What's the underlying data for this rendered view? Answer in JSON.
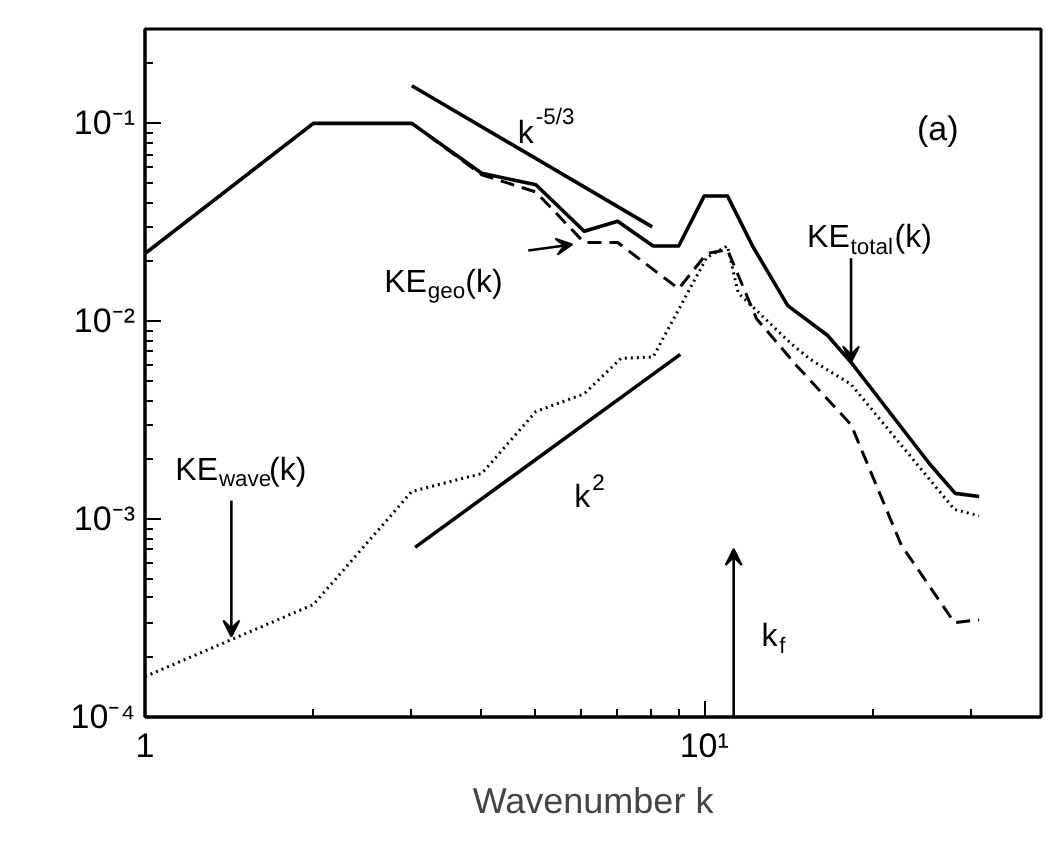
{
  "chart_data": {
    "type": "line",
    "xlabel": "Wavenumber k",
    "log": "xy",
    "xlim": [
      1,
      40
    ],
    "ylim": [
      0.0001,
      0.3
    ],
    "xticks": [
      {
        "value": 1,
        "label": "1"
      },
      {
        "value": 10,
        "label": "10¹"
      }
    ],
    "yticks": [
      {
        "value": 0.0001,
        "label": "10⁻⁴"
      },
      {
        "value": 0.001,
        "label": "10⁻³"
      },
      {
        "value": 0.01,
        "label": "10⁻²"
      },
      {
        "value": 0.1,
        "label": "10⁻¹"
      }
    ],
    "series": [
      {
        "name": "KE$_{total}$(k)",
        "color": "#000000",
        "line_style": "solid",
        "x": [
          1,
          2,
          3,
          4,
          5,
          6.1,
          7,
          8.1,
          9,
          10,
          11,
          12.2,
          14.1,
          16.6,
          18.3,
          25.3,
          28.1,
          31
        ],
        "values": [
          0.022,
          0.1,
          0.1,
          0.056,
          0.049,
          0.0285,
          0.032,
          0.024,
          0.024,
          0.043,
          0.043,
          0.024,
          0.012,
          0.0085,
          0.0062,
          0.0019,
          0.00135,
          0.0013
        ]
      },
      {
        "name": "KE$_{geo}$(k)",
        "color": "#000000",
        "line_style": "dashed",
        "x": [
          1,
          2,
          3,
          4,
          5,
          6.1,
          7,
          9,
          10.1,
          11,
          12.4,
          14.6,
          18.3,
          22.5,
          28,
          31
        ],
        "values": [
          0.022,
          0.1,
          0.1,
          0.055,
          0.045,
          0.025,
          0.025,
          0.0146,
          0.022,
          0.023,
          0.0103,
          0.006,
          0.003,
          0.00074,
          0.0003,
          0.00031
        ]
      },
      {
        "name": "KE$_{wave}$(k)",
        "color": "#000000",
        "line_style": "dotted",
        "x": [
          1,
          2,
          3,
          4,
          5,
          6.1,
          7.1,
          8.1,
          10.1,
          11,
          11.5,
          14.3,
          15.5,
          18.3,
          28,
          31
        ],
        "values": [
          0.00016,
          0.00037,
          0.00138,
          0.0017,
          0.0035,
          0.0043,
          0.0065,
          0.0066,
          0.021,
          0.024,
          0.0139,
          0.0077,
          0.0064,
          0.0048,
          0.00112,
          0.00104
        ]
      },
      {
        "name": "k$^{-5/3}$",
        "color": "#000000",
        "line_style": "solid",
        "x": [
          3,
          8.07
        ],
        "values": [
          0.155,
          0.03
        ]
      },
      {
        "name": "k$^{2}$",
        "color": "#000000",
        "line_style": "solid",
        "x": [
          3.04,
          9.06
        ],
        "values": [
          0.00072,
          0.0068
        ]
      }
    ],
    "annotations": [
      "(a)",
      "k$_{f}$"
    ]
  }
}
